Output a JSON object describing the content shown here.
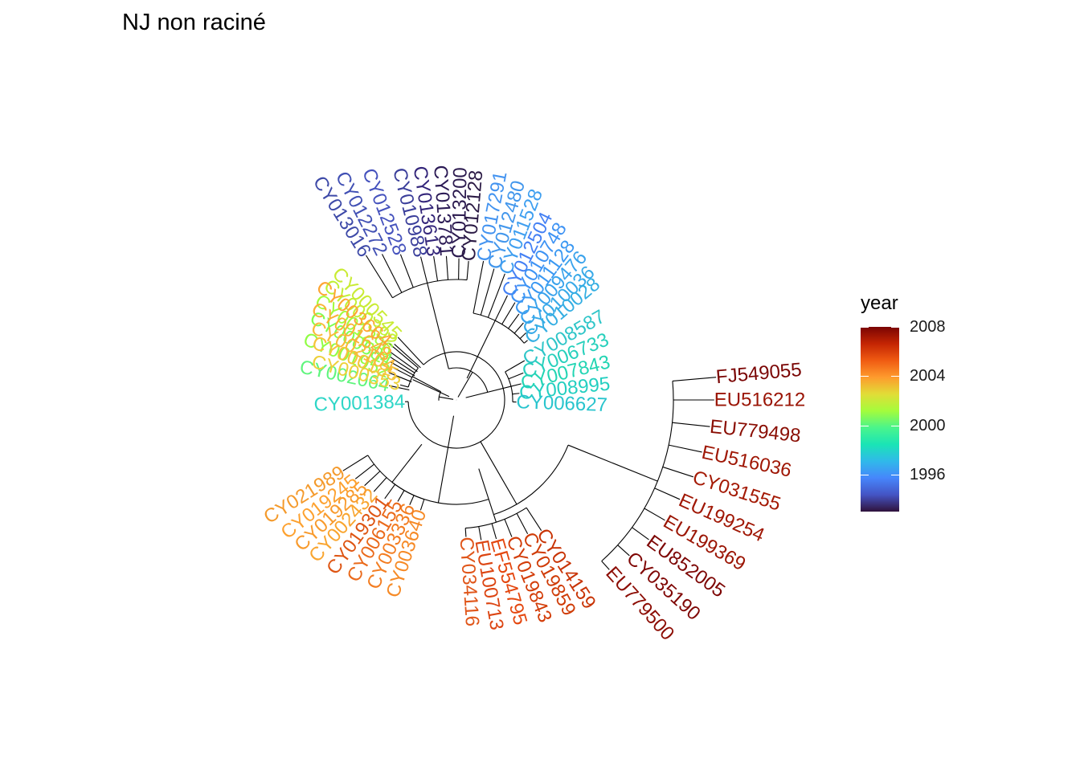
{
  "title": "NJ non raciné",
  "legend": {
    "title": "year",
    "ticks": [
      "2008",
      "2004",
      "2000",
      "1996"
    ],
    "colors": [
      "#7a0403",
      "#c42503",
      "#f05b12",
      "#fe9b2d",
      "#e1dd37",
      "#a4fc3c",
      "#4af58b",
      "#1ae4b6",
      "#30b9ea",
      "#4686fb",
      "#4454c4",
      "#30123b"
    ]
  },
  "tips": [
    {
      "label": "CY013016",
      "color": "#3e4aa8"
    },
    {
      "label": "CY012272",
      "color": "#4150b4"
    },
    {
      "label": "CY012528",
      "color": "#4552bd"
    },
    {
      "label": "CY010988",
      "color": "#3b3f9b"
    },
    {
      "label": "CY013613",
      "color": "#33257a"
    },
    {
      "label": "CY013781",
      "color": "#2b1a55"
    },
    {
      "label": "CY013200",
      "color": "#2c1b4f"
    },
    {
      "label": "CY012128",
      "color": "#2b1a45"
    },
    {
      "label": "CY017291",
      "color": "#4393f0"
    },
    {
      "label": "CY012480",
      "color": "#4397ec"
    },
    {
      "label": "CY011528",
      "color": "#3f9ff0"
    },
    {
      "label": "CY012504",
      "color": "#4480f4"
    },
    {
      "label": "CY010748",
      "color": "#3e93f4"
    },
    {
      "label": "CY011128",
      "color": "#3a98f2"
    },
    {
      "label": "CY009476",
      "color": "#3aa3ec"
    },
    {
      "label": "CY010036",
      "color": "#37a9e8"
    },
    {
      "label": "CY010028",
      "color": "#34aee2"
    },
    {
      "label": "CY008587",
      "color": "#2ec5c8"
    },
    {
      "label": "CY006733",
      "color": "#27d0bc"
    },
    {
      "label": "CY007843",
      "color": "#23d5b3"
    },
    {
      "label": "CY008995",
      "color": "#22cfc0"
    },
    {
      "label": "CY006627",
      "color": "#28c4cd"
    },
    {
      "label": "CY001384",
      "color": "#2ed6c7"
    },
    {
      "label": "CY002064",
      "color": "#5ff57d"
    },
    {
      "label": "CY001952",
      "color": "#90fd44"
    },
    {
      "label": "CY000584",
      "color": "#7dff52"
    },
    {
      "label": "CY001296",
      "color": "#a2fc3c"
    },
    {
      "label": "CY000392",
      "color": "#c1f034"
    },
    {
      "label": "CY000545",
      "color": "#c9eb34"
    },
    {
      "label": "CY000353",
      "color": "#edd03a"
    },
    {
      "label": "CY000185",
      "color": "#f6c43b"
    },
    {
      "label": "CY002104",
      "color": "#f9ba39"
    },
    {
      "label": "CY001648",
      "color": "#fbb036"
    },
    {
      "label": "CY003664",
      "color": "#fda533"
    },
    {
      "label": "CY003640",
      "color": "#f68a26"
    },
    {
      "label": "CY003336",
      "color": "#f37d21"
    },
    {
      "label": "CY006155",
      "color": "#ea6a1b"
    },
    {
      "label": "CY019301",
      "color": "#de5513"
    },
    {
      "label": "CY002432",
      "color": "#f9a52f"
    },
    {
      "label": "CY019285",
      "color": "#f89a2c"
    },
    {
      "label": "CY019245",
      "color": "#fda12f"
    },
    {
      "label": "CY021989",
      "color": "#f49a2c"
    },
    {
      "label": "CY034116",
      "color": "#e0561a"
    },
    {
      "label": "EU100713",
      "color": "#dc4512"
    },
    {
      "label": "EF554795",
      "color": "#e4470f"
    },
    {
      "label": "CY019843",
      "color": "#d33d09"
    },
    {
      "label": "CY019859",
      "color": "#cf3b06"
    },
    {
      "label": "CY014159",
      "color": "#c83405"
    },
    {
      "label": "EU779500",
      "color": "#8c0d04"
    },
    {
      "label": "CY035190",
      "color": "#7f0604"
    },
    {
      "label": "EU852005",
      "color": "#7d0604"
    },
    {
      "label": "EU199369",
      "color": "#9b1504"
    },
    {
      "label": "EU199254",
      "color": "#a01705"
    },
    {
      "label": "CY031555",
      "color": "#a41a05"
    },
    {
      "label": "EU516036",
      "color": "#9f1705"
    },
    {
      "label": "EU779498",
      "color": "#8a0e04"
    },
    {
      "label": "EU516212",
      "color": "#9a1405"
    },
    {
      "label": "FJ549055",
      "color": "#7a0403"
    }
  ]
}
